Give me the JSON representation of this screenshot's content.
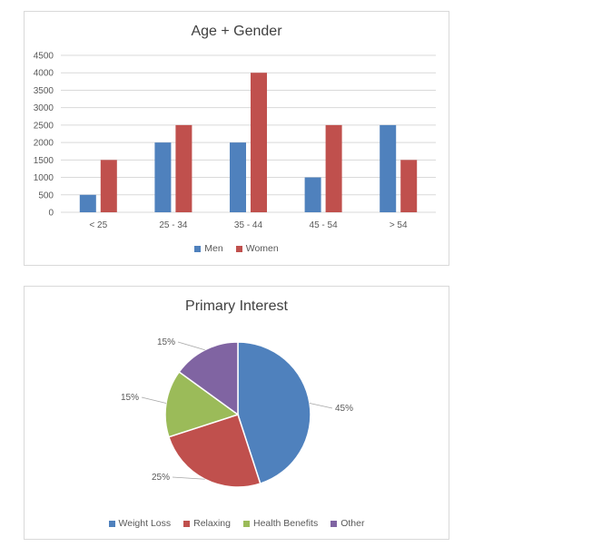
{
  "chart_data": [
    {
      "type": "bar",
      "title": "Age + Gender",
      "categories": [
        "< 25",
        "25 - 34",
        "35 - 44",
        "45 - 54",
        "> 54"
      ],
      "series": [
        {
          "name": "Men",
          "values": [
            500,
            2000,
            2000,
            1000,
            2500
          ],
          "color": "#4f81bd"
        },
        {
          "name": "Women",
          "values": [
            1500,
            2500,
            4000,
            2500,
            1500
          ],
          "color": "#c0504d"
        }
      ],
      "ylim": [
        0,
        4500
      ],
      "yticks": [
        0,
        500,
        1000,
        1500,
        2000,
        2500,
        3000,
        3500,
        4000,
        4500
      ],
      "grid": true,
      "legend_position": "bottom"
    },
    {
      "type": "pie",
      "title": "Primary Interest",
      "slices": [
        {
          "label": "Weight Loss",
          "value": 45,
          "display": "45%",
          "color": "#4f81bd"
        },
        {
          "label": "Relaxing",
          "value": 25,
          "display": "25%",
          "color": "#c0504d"
        },
        {
          "label": "Health Benefits",
          "value": 15,
          "display": "15%",
          "color": "#9bbb59"
        },
        {
          "label": "Other",
          "value": 15,
          "display": "15%",
          "color": "#8064a2"
        }
      ],
      "legend_position": "bottom"
    }
  ]
}
